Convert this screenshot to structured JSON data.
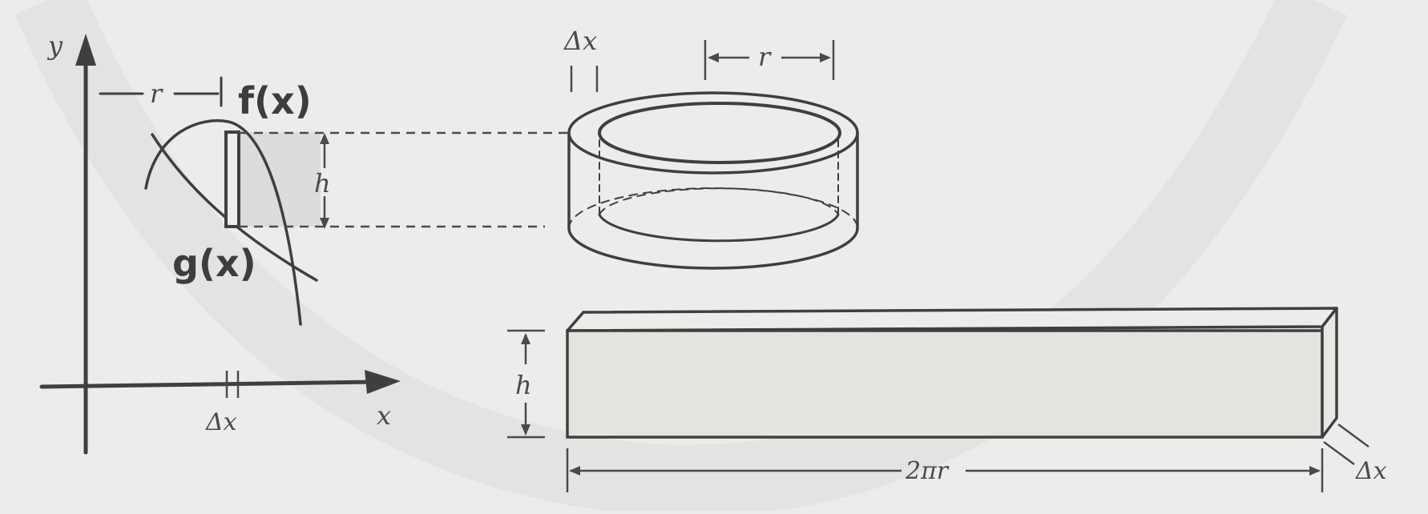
{
  "graph": {
    "y_axis_label": "y",
    "x_axis_label": "x",
    "radius_label": "r",
    "f_label": "f(x)",
    "g_label": "g(x)",
    "height_label": "h",
    "dx_label": "Δx"
  },
  "shell": {
    "dx_label": "Δx",
    "radius_label": "r"
  },
  "slab": {
    "height_label": "h",
    "length_label": "2πr",
    "dx_label": "Δx"
  },
  "colors": {
    "background": "#ececea",
    "ink": "#3f3f3f",
    "shade": "#d6d6d3"
  }
}
